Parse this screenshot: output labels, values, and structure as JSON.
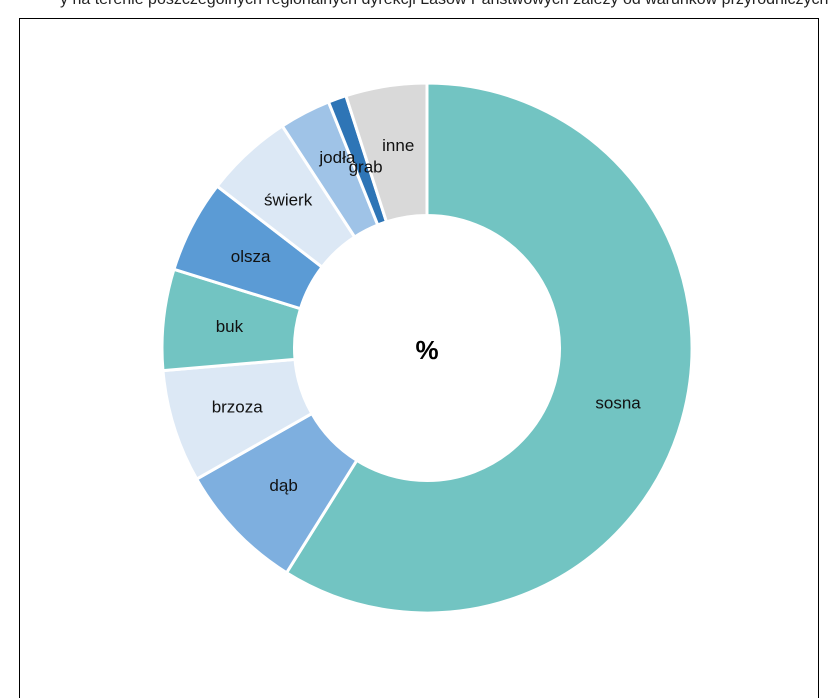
{
  "header_fragment": "y na terenie poszczególnych regionalnych dyrekcji Lasów Państwowych zależy od warunków przyrodniczych i geograficznych w gospodarstwie",
  "chart_data": {
    "type": "pie",
    "title": "",
    "center_label": "%",
    "hole_fraction": 0.5,
    "start_angle_deg": 0,
    "slices": [
      {
        "name": "sosna",
        "value": 58.3,
        "color": "#72C4C2"
      },
      {
        "name": "dąb",
        "value": 7.8,
        "color": "#7EAFDF"
      },
      {
        "name": "brzoza",
        "value": 6.8,
        "color": "#DCE8F5"
      },
      {
        "name": "buk",
        "value": 6.1,
        "color": "#72C4C2"
      },
      {
        "name": "olsza",
        "value": 5.6,
        "color": "#5B9BD5"
      },
      {
        "name": "świerk",
        "value": 5.3,
        "color": "#DCE8F5"
      },
      {
        "name": "jodła",
        "value": 3.1,
        "color": "#9FC3E7"
      },
      {
        "name": "grab",
        "value": 1.1,
        "color": "#2E75B6"
      },
      {
        "name": "inne",
        "value": 4.9,
        "color": "#D9D9D9"
      }
    ]
  }
}
